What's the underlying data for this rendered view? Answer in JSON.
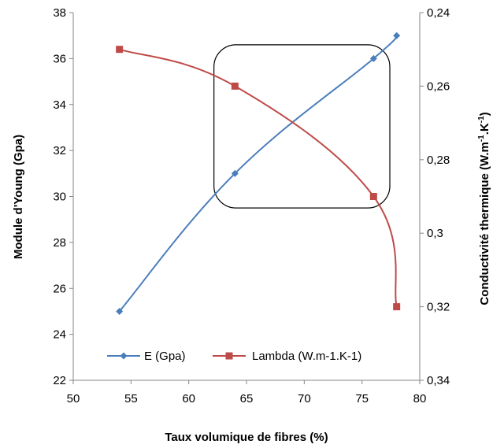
{
  "chart_data": {
    "type": "line",
    "x_axis": {
      "label": "Taux volumique de fibres (%)",
      "range": [
        50,
        80
      ],
      "ticks": [
        50,
        55,
        60,
        65,
        70,
        75,
        80
      ],
      "tick_labels": [
        "50",
        "55",
        "60",
        "65",
        "70",
        "75",
        "80"
      ]
    },
    "y_axis_left": {
      "label": "Module d'Young (Gpa)",
      "range": [
        22,
        38
      ],
      "ticks": [
        22,
        24,
        26,
        28,
        30,
        32,
        34,
        36,
        38
      ],
      "tick_labels": [
        "22",
        "24",
        "26",
        "28",
        "30",
        "32",
        "34",
        "36",
        "38"
      ]
    },
    "y_axis_right": {
      "label_main": "Conductivité thermique (W.m",
      "label_sup1": "-1",
      "label_mid": ".K",
      "label_sup2": "-1",
      "label_end": ")",
      "range": [
        0.24,
        0.34
      ],
      "reversed": true,
      "ticks": [
        0.24,
        0.26,
        0.28,
        0.3,
        0.32,
        0.34
      ],
      "tick_labels": [
        "0,24",
        "0,26",
        "0,28",
        "0,3",
        "0,32",
        "0,34"
      ]
    },
    "series": [
      {
        "name": "E (Gpa)",
        "axis": "left",
        "color": "#4a7ebb",
        "marker": "diamond",
        "x": [
          54,
          64,
          76,
          78
        ],
        "y": [
          25,
          31,
          36,
          37
        ]
      },
      {
        "name": "Lambda (W.m-1.K-1)",
        "axis": "right",
        "color": "#be4b48",
        "marker": "square",
        "x": [
          54,
          64,
          76,
          78
        ],
        "y": [
          0.25,
          0.26,
          0.29,
          0.32
        ]
      }
    ],
    "legend_position": "bottom-center inside plot",
    "grid": false,
    "annotation": "rounded rectangle highlighting region x≈63–77",
    "annotation_region": {
      "x": [
        63,
        77
      ],
      "y_left": [
        29.5,
        36.6
      ]
    }
  }
}
